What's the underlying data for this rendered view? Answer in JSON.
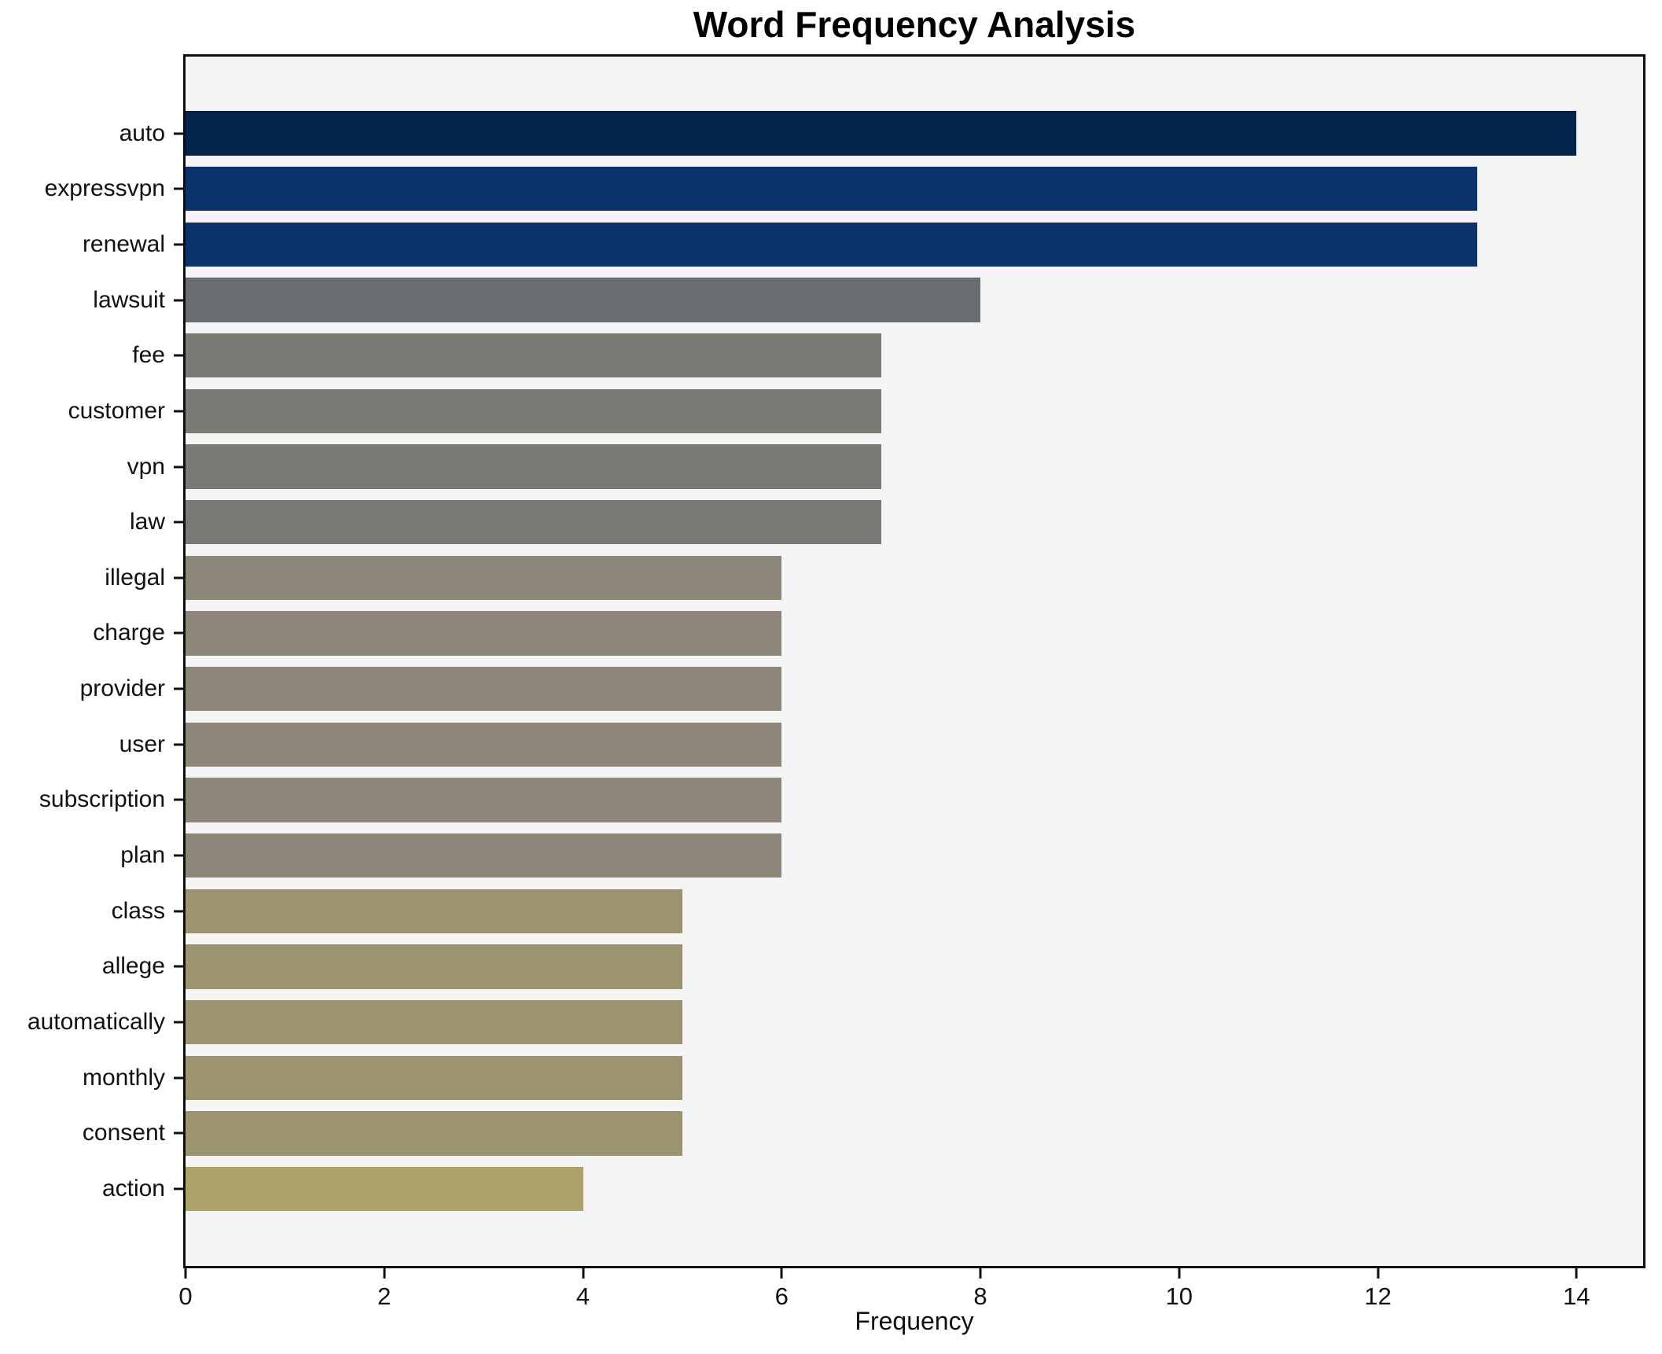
{
  "chart_data": {
    "type": "bar",
    "orientation": "horizontal",
    "title": "Word Frequency Analysis",
    "xlabel": "Frequency",
    "ylabel": "",
    "categories": [
      "auto",
      "expressvpn",
      "renewal",
      "lawsuit",
      "fee",
      "customer",
      "vpn",
      "law",
      "illegal",
      "charge",
      "provider",
      "user",
      "subscription",
      "plan",
      "class",
      "allege",
      "automatically",
      "monthly",
      "consent",
      "action"
    ],
    "values": [
      14,
      13,
      13,
      8,
      7,
      7,
      7,
      7,
      6,
      6,
      6,
      6,
      6,
      6,
      5,
      5,
      5,
      5,
      5,
      4
    ],
    "bar_colors": [
      "#02234c",
      "#0b326b",
      "#0b326b",
      "#696c71",
      "#7b7a74",
      "#7b7a74",
      "#7b7a74",
      "#7b7a74",
      "#8d877a",
      "#8d877a",
      "#8d877a",
      "#8d877a",
      "#8d877a",
      "#8d877a",
      "#9c946f",
      "#9c946f",
      "#9c946f",
      "#9c946f",
      "#9c946f",
      "#aea268"
    ],
    "xticks": [
      0,
      2,
      4,
      6,
      8,
      10,
      12,
      14
    ],
    "xlim": [
      0,
      14.67
    ],
    "grid": false,
    "legend": false,
    "plot_background": "#f5f5f6",
    "figure_background": "#ffffff",
    "spine_color": "#0f0f0f",
    "text_color": "#111111"
  }
}
